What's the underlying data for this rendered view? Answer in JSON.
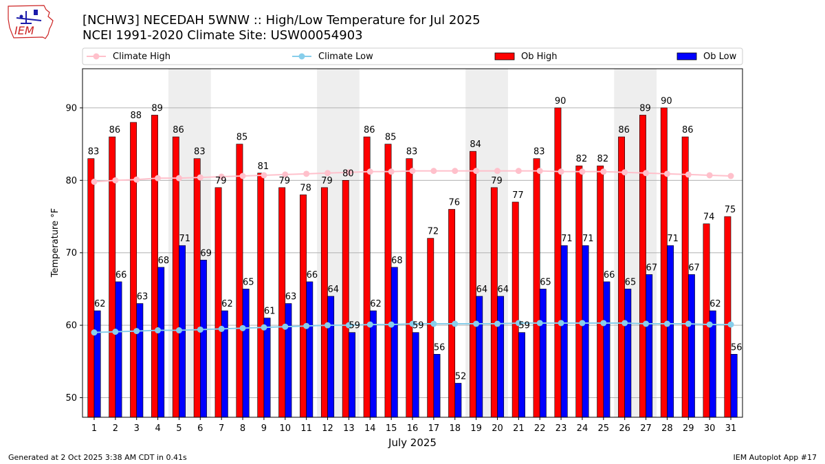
{
  "header": {
    "logo_text": "IEM",
    "title_line1": "[NCHW3] NECEDAH 5WNW :: High/Low Temperature for Jul 2025",
    "title_line2": "NCEI 1991-2020 Climate Site: USW00054903"
  },
  "legend": {
    "climate_high": "Climate High",
    "climate_low": "Climate Low",
    "ob_high": "Ob High",
    "ob_low": "Ob Low"
  },
  "footer": {
    "generated": "Generated at 2 Oct 2025 3:38 AM CDT in 0.41s",
    "app": "IEM Autoplot App #17"
  },
  "colors": {
    "ob_high": "#ff0000",
    "ob_low": "#0000ff",
    "climate_high": "#ffc0cb",
    "climate_low": "#87ceeb",
    "weekend_shade": "#eeeeee",
    "grid": "#b0b0b0"
  },
  "chart_data": {
    "type": "bar",
    "xlabel": "July 2025",
    "ylabel": "Temperature °F",
    "ylim": [
      47.3,
      95.4
    ],
    "yticks": [
      50,
      60,
      70,
      80,
      90
    ],
    "grid": "horizontal",
    "legend_position": "top",
    "categories": [
      "1",
      "2",
      "3",
      "4",
      "5",
      "6",
      "7",
      "8",
      "9",
      "10",
      "11",
      "12",
      "13",
      "14",
      "15",
      "16",
      "17",
      "18",
      "19",
      "20",
      "21",
      "22",
      "23",
      "24",
      "25",
      "26",
      "27",
      "28",
      "29",
      "30",
      "31"
    ],
    "shaded_weekends": [
      [
        5,
        6
      ],
      [
        12,
        13
      ],
      [
        19,
        20
      ],
      [
        26,
        27
      ]
    ],
    "series": [
      {
        "name": "Ob High",
        "kind": "bar",
        "values": [
          83,
          86,
          88,
          89,
          86,
          83,
          79,
          85,
          81,
          79,
          78,
          79,
          80,
          86,
          85,
          83,
          72,
          76,
          84,
          79,
          77,
          83,
          90,
          82,
          82,
          86,
          89,
          90,
          86,
          74,
          75
        ]
      },
      {
        "name": "Ob Low",
        "kind": "bar",
        "values": [
          62,
          66,
          63,
          68,
          71,
          69,
          62,
          65,
          61,
          63,
          66,
          64,
          59,
          62,
          68,
          59,
          56,
          52,
          64,
          64,
          59,
          65,
          71,
          71,
          66,
          65,
          67,
          71,
          67,
          62,
          56
        ]
      },
      {
        "name": "Climate High",
        "kind": "line",
        "values": [
          79.8,
          80.0,
          80.1,
          80.3,
          80.3,
          80.4,
          80.5,
          80.6,
          80.7,
          80.8,
          80.9,
          81.0,
          81.1,
          81.2,
          81.2,
          81.3,
          81.3,
          81.3,
          81.3,
          81.3,
          81.3,
          81.3,
          81.2,
          81.2,
          81.2,
          81.1,
          81.0,
          80.9,
          80.8,
          80.7,
          80.6
        ]
      },
      {
        "name": "Climate Low",
        "kind": "line",
        "values": [
          59.0,
          59.1,
          59.2,
          59.3,
          59.3,
          59.4,
          59.5,
          59.6,
          59.7,
          59.8,
          59.9,
          60.0,
          60.0,
          60.1,
          60.1,
          60.2,
          60.2,
          60.2,
          60.2,
          60.2,
          60.3,
          60.3,
          60.3,
          60.3,
          60.3,
          60.3,
          60.2,
          60.2,
          60.2,
          60.1,
          60.1
        ]
      }
    ]
  }
}
